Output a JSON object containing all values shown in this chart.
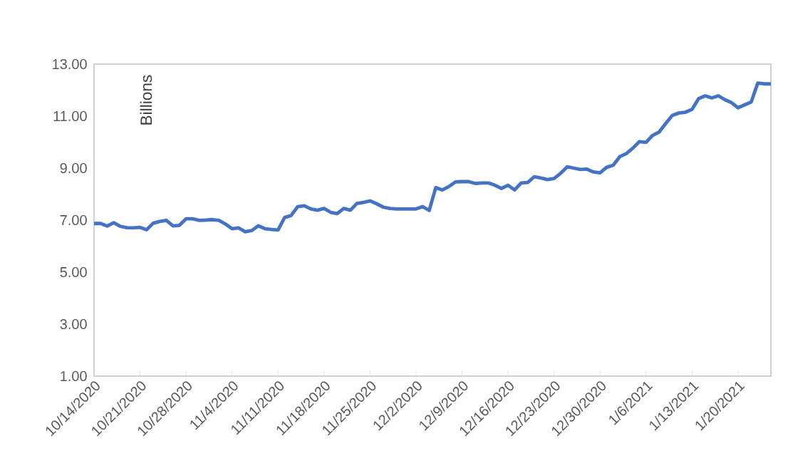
{
  "chart_data": {
    "type": "line",
    "ylabel": "Billions",
    "color": "#4472c4",
    "x": [
      "2020-10-14",
      "2020-10-15",
      "2020-10-16",
      "2020-10-17",
      "2020-10-18",
      "2020-10-19",
      "2020-10-20",
      "2020-10-21",
      "2020-10-22",
      "2020-10-23",
      "2020-10-24",
      "2020-10-25",
      "2020-10-26",
      "2020-10-27",
      "2020-10-28",
      "2020-10-29",
      "2020-10-30",
      "2020-10-31",
      "2020-11-01",
      "2020-11-02",
      "2020-11-03",
      "2020-11-04",
      "2020-11-05",
      "2020-11-06",
      "2020-11-07",
      "2020-11-08",
      "2020-11-09",
      "2020-11-10",
      "2020-11-11",
      "2020-11-12",
      "2020-11-13",
      "2020-11-14",
      "2020-11-15",
      "2020-11-16",
      "2020-11-17",
      "2020-11-18",
      "2020-11-19",
      "2020-11-20",
      "2020-11-21",
      "2020-11-22",
      "2020-11-23",
      "2020-11-24",
      "2020-11-25",
      "2020-11-26",
      "2020-11-27",
      "2020-11-28",
      "2020-11-29",
      "2020-11-30",
      "2020-12-01",
      "2020-12-02",
      "2020-12-03",
      "2020-12-04",
      "2020-12-05",
      "2020-12-06",
      "2020-12-07",
      "2020-12-08",
      "2020-12-09",
      "2020-12-10",
      "2020-12-11",
      "2020-12-12",
      "2020-12-13",
      "2020-12-14",
      "2020-12-15",
      "2020-12-16",
      "2020-12-17",
      "2020-12-18",
      "2020-12-19",
      "2020-12-20",
      "2020-12-21",
      "2020-12-22",
      "2020-12-23",
      "2020-12-24",
      "2020-12-25",
      "2020-12-26",
      "2020-12-27",
      "2020-12-28",
      "2020-12-29",
      "2020-12-30",
      "2020-12-31",
      "2021-01-01",
      "2021-01-02",
      "2021-01-03",
      "2021-01-04",
      "2021-01-05",
      "2021-01-06",
      "2021-01-07",
      "2021-01-08",
      "2021-01-09",
      "2021-01-10",
      "2021-01-11",
      "2021-01-12",
      "2021-01-13",
      "2021-01-14",
      "2021-01-15",
      "2021-01-16",
      "2021-01-17",
      "2021-01-18",
      "2021-01-19",
      "2021-01-20",
      "2021-01-21",
      "2021-01-22",
      "2021-01-23",
      "2021-01-24",
      "2021-01-25"
    ],
    "values": [
      6.87,
      6.87,
      6.77,
      6.9,
      6.76,
      6.71,
      6.7,
      6.72,
      6.63,
      6.88,
      6.95,
      6.99,
      6.78,
      6.8,
      7.05,
      7.05,
      6.99,
      7.0,
      7.02,
      6.99,
      6.85,
      6.67,
      6.7,
      6.55,
      6.6,
      6.78,
      6.67,
      6.64,
      6.62,
      7.1,
      7.18,
      7.52,
      7.55,
      7.43,
      7.38,
      7.45,
      7.3,
      7.25,
      7.45,
      7.38,
      7.64,
      7.68,
      7.74,
      7.63,
      7.5,
      7.45,
      7.43,
      7.43,
      7.43,
      7.43,
      7.52,
      7.37,
      8.25,
      8.16,
      8.29,
      8.47,
      8.48,
      8.48,
      8.41,
      8.43,
      8.43,
      8.34,
      8.22,
      8.34,
      8.16,
      8.43,
      8.45,
      8.67,
      8.62,
      8.56,
      8.6,
      8.8,
      9.05,
      9.0,
      8.95,
      8.96,
      8.85,
      8.82,
      9.03,
      9.11,
      9.44,
      9.56,
      9.77,
      10.02,
      9.99,
      10.26,
      10.39,
      10.72,
      11.03,
      11.12,
      11.15,
      11.26,
      11.67,
      11.78,
      11.7,
      11.78,
      11.63,
      11.52,
      11.32,
      11.43,
      11.54,
      12.27,
      12.24,
      12.24
    ],
    "xlim": [
      "2020-10-14",
      "2021-01-25"
    ],
    "xticks": [
      {
        "value": "2020-10-14",
        "label": "10/14/2020"
      },
      {
        "value": "2020-10-21",
        "label": "10/21/2020"
      },
      {
        "value": "2020-10-28",
        "label": "10/28/2020"
      },
      {
        "value": "2020-11-04",
        "label": "11/4/2020"
      },
      {
        "value": "2020-11-11",
        "label": "11/11/2020"
      },
      {
        "value": "2020-11-18",
        "label": "11/18/2020"
      },
      {
        "value": "2020-11-25",
        "label": "11/25/2020"
      },
      {
        "value": "2020-12-02",
        "label": "12/2/2020"
      },
      {
        "value": "2020-12-09",
        "label": "12/9/2020"
      },
      {
        "value": "2020-12-16",
        "label": "12/16/2020"
      },
      {
        "value": "2020-12-23",
        "label": "12/23/2020"
      },
      {
        "value": "2020-12-30",
        "label": "12/30/2020"
      },
      {
        "value": "2021-01-06",
        "label": "1/6/2021"
      },
      {
        "value": "2021-01-13",
        "label": "1/13/2021"
      },
      {
        "value": "2021-01-20",
        "label": "1/20/2021"
      }
    ],
    "ylim": [
      1,
      13
    ],
    "yticks": [
      {
        "value": 1,
        "label": "1.00"
      },
      {
        "value": 3,
        "label": "3.00"
      },
      {
        "value": 5,
        "label": "5.00"
      },
      {
        "value": 7,
        "label": "7.00"
      },
      {
        "value": 9,
        "label": "9.00"
      },
      {
        "value": 11,
        "label": "11.00"
      },
      {
        "value": 13,
        "label": "13.00"
      }
    ]
  }
}
